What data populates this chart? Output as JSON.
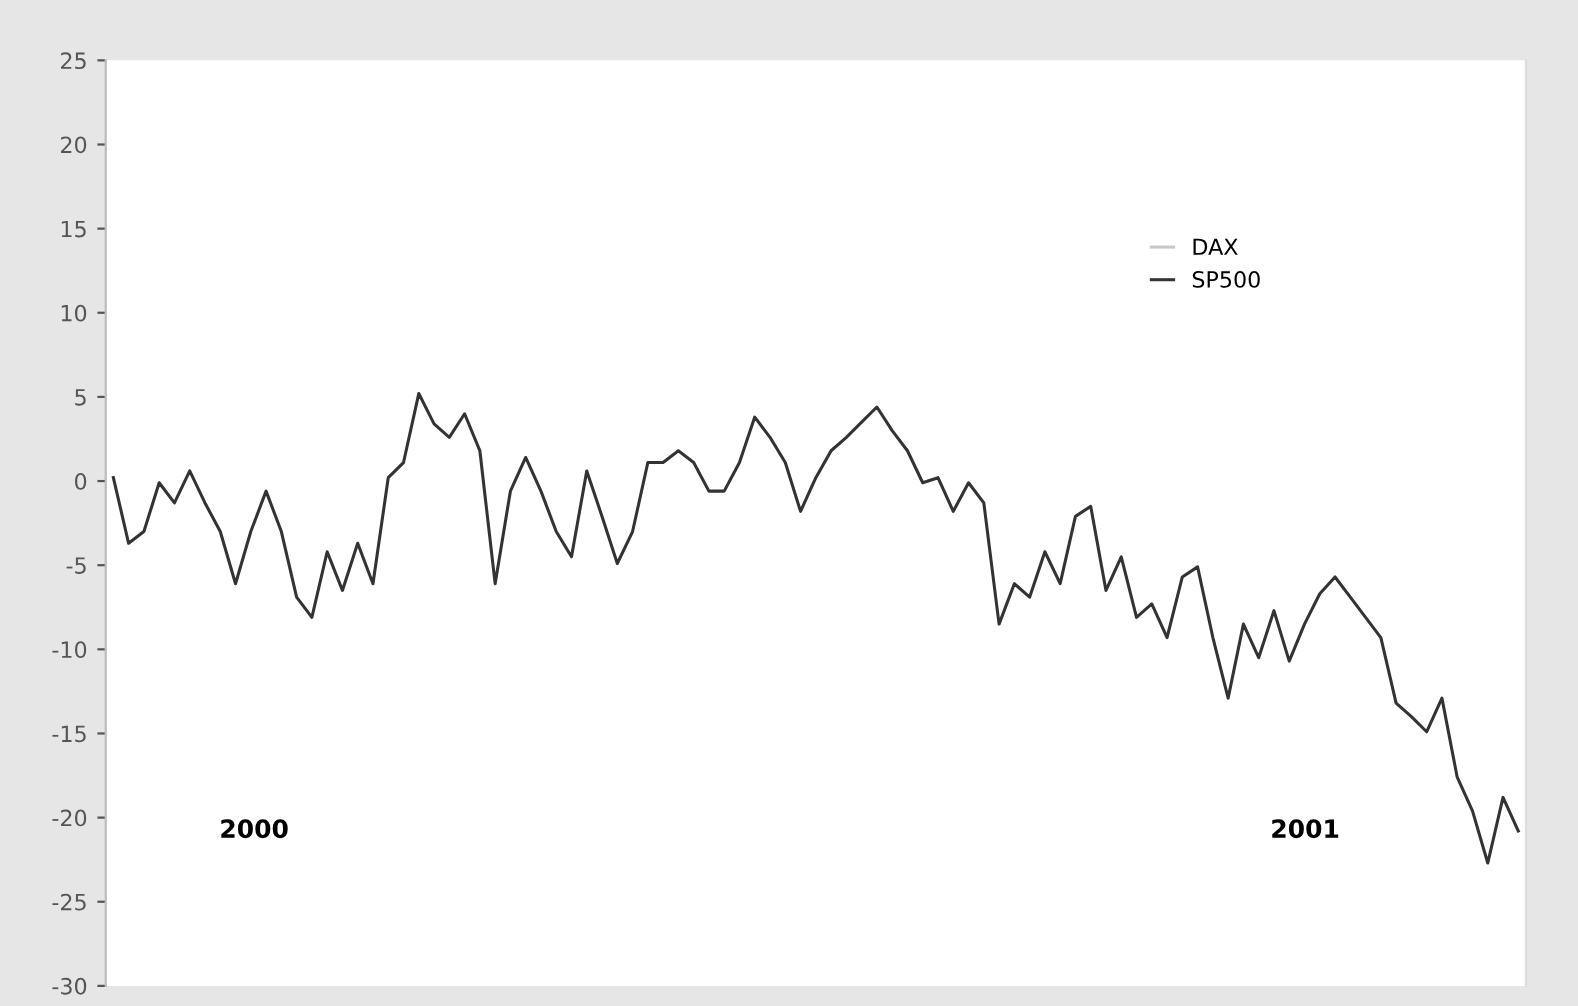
{
  "chart_data": {
    "type": "line",
    "categories": [
      null,
      null,
      null,
      null,
      null,
      null,
      null,
      null,
      null,
      null,
      null,
      null,
      null,
      null,
      null,
      null,
      null,
      null,
      null,
      null,
      null,
      null,
      null,
      null,
      null,
      null,
      null,
      null,
      null,
      null,
      null,
      null,
      null,
      null,
      null,
      null,
      null,
      null,
      null,
      null,
      null,
      null,
      null,
      null,
      null,
      null,
      null,
      null,
      null,
      null,
      null,
      null,
      null,
      null,
      null,
      null,
      null,
      null,
      null,
      null,
      null,
      null,
      null,
      null,
      null,
      null,
      null,
      null,
      null,
      null,
      null,
      null,
      null,
      null,
      null,
      null,
      null,
      null,
      null,
      null,
      null,
      null,
      null,
      null,
      null,
      null,
      null,
      null,
      null,
      null,
      null,
      null,
      null
    ],
    "series": [
      {
        "name": "DAX",
        "color": "#c8c8c8",
        "values": [
          null,
          null,
          null,
          null,
          null,
          null,
          null,
          null,
          null,
          null,
          null,
          null,
          null,
          null,
          null,
          null,
          null,
          null,
          null,
          null,
          null,
          null,
          null,
          null,
          null,
          null,
          null,
          null,
          null,
          null,
          null,
          null,
          null,
          null,
          null,
          null,
          null,
          null,
          null,
          null,
          null,
          null,
          null,
          null,
          null,
          null,
          null,
          null,
          null,
          null,
          null,
          null,
          null,
          null,
          null,
          null,
          null,
          null,
          null,
          null,
          null,
          null,
          null,
          null,
          null,
          null,
          null,
          null,
          null,
          null,
          null,
          null,
          null,
          null,
          null,
          null,
          null,
          null,
          null,
          null,
          null,
          null,
          null,
          null,
          null,
          null,
          null,
          null,
          null,
          null,
          null,
          null,
          null
        ]
      },
      {
        "name": "SP500",
        "color": "#333333",
        "values": [
          0.2,
          -3.7,
          -3.0,
          -0.1,
          -1.3,
          0.6,
          -1.3,
          -3.0,
          -6.1,
          -3.0,
          -0.6,
          -3.0,
          -6.9,
          -8.1,
          -4.2,
          -6.5,
          -3.7,
          -6.1,
          0.2,
          1.1,
          5.2,
          3.4,
          2.6,
          4.0,
          1.8,
          -6.1,
          -0.6,
          1.4,
          -0.6,
          -3.0,
          -4.5,
          0.6,
          -2.1,
          -4.9,
          -3.0,
          1.1,
          1.1,
          1.8,
          1.1,
          -0.6,
          -0.6,
          1.1,
          3.8,
          2.6,
          1.1,
          -1.8,
          0.2,
          1.8,
          2.6,
          3.5,
          4.4,
          3.0,
          1.8,
          -0.1,
          0.2,
          -1.8,
          -0.1,
          -1.3,
          -8.5,
          -6.1,
          -6.9,
          -4.2,
          -6.1,
          -2.1,
          -1.5,
          -6.5,
          -4.5,
          -8.1,
          -7.3,
          -9.3,
          -5.7,
          -5.1,
          -9.3,
          -12.9,
          -8.5,
          -10.5,
          -7.7,
          -10.7,
          -8.5,
          -6.7,
          -5.7,
          -6.9,
          -8.1,
          -9.3,
          -13.2,
          -14.0,
          -14.9,
          -12.9,
          -17.6,
          -19.6,
          -22.7,
          -18.8,
          -20.8
        ]
      }
    ],
    "ylim": [
      -30,
      25
    ],
    "yticks": [
      -30,
      -25,
      -20,
      -15,
      -10,
      -5,
      0,
      5,
      10,
      15,
      20,
      25
    ],
    "tick_labels": "y",
    "legend": "top right",
    "grid": false,
    "line_style": "solid",
    "marker": "none",
    "annotations": [
      "2000",
      "2001"
    ]
  }
}
